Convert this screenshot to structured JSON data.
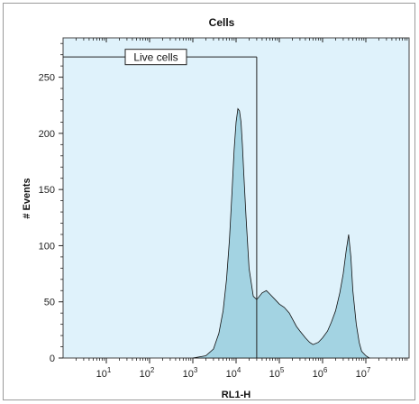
{
  "chart_data": {
    "type": "area",
    "title": "Cells",
    "xlabel": "RL1-H",
    "ylabel": "# Events",
    "x_scale": "log",
    "xlim": [
      1,
      100000000
    ],
    "ylim": [
      0,
      285
    ],
    "x_ticks": [
      {
        "value": 10,
        "base": "10",
        "exp": "1"
      },
      {
        "value": 100,
        "base": "10",
        "exp": "2"
      },
      {
        "value": 1000,
        "base": "10",
        "exp": "3"
      },
      {
        "value": 10000,
        "base": "10",
        "exp": "4"
      },
      {
        "value": 100000,
        "base": "10",
        "exp": "5"
      },
      {
        "value": 1000000,
        "base": "10",
        "exp": "6"
      },
      {
        "value": 10000000,
        "base": "10",
        "exp": "7"
      }
    ],
    "y_ticks": [
      0,
      50,
      100,
      150,
      200,
      250
    ],
    "grid": false,
    "colors": {
      "plot_background": "#dff2fb",
      "histogram_fill": "#a3d3e2",
      "histogram_line": "#111111",
      "gate_line": "#222222"
    },
    "series": [
      {
        "x": [
          1000,
          2000,
          3000,
          4000,
          5000,
          6000,
          7000,
          8000,
          9000,
          10000,
          11000,
          12000,
          13000,
          14000,
          15000,
          17000,
          20000,
          25000,
          30000,
          40000,
          50000,
          60000,
          80000,
          100000,
          130000,
          170000,
          200000,
          250000,
          300000,
          400000,
          500000,
          600000,
          800000,
          1000000,
          1300000,
          1600000,
          2000000,
          2500000,
          3000000,
          3500000,
          4000000,
          4500000,
          5000000,
          6000000,
          7000000,
          8000000,
          10000000,
          12000000
        ],
        "values": [
          0,
          2,
          8,
          22,
          42,
          70,
          105,
          145,
          185,
          210,
          222,
          220,
          210,
          190,
          165,
          125,
          80,
          55,
          52,
          58,
          60,
          57,
          52,
          48,
          45,
          40,
          35,
          28,
          24,
          18,
          14,
          12,
          14,
          18,
          24,
          32,
          42,
          58,
          75,
          95,
          110,
          90,
          60,
          30,
          14,
          6,
          2,
          0
        ]
      }
    ],
    "gate": {
      "label": "Live cells",
      "x_start": 1,
      "x_end": 30000,
      "y": 268
    }
  }
}
